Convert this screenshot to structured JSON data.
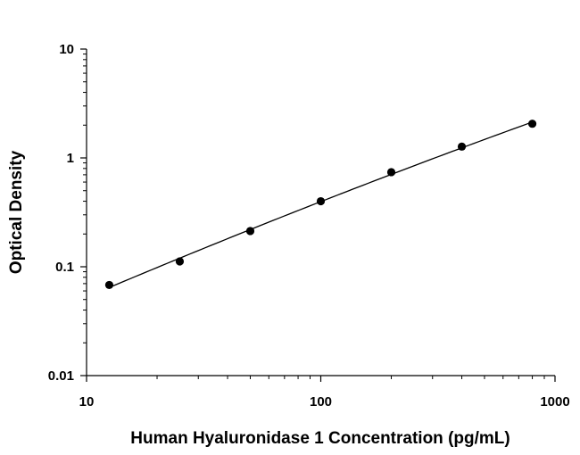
{
  "chart_data": {
    "type": "scatter",
    "title": "",
    "xlabel": "Human Hyaluronidase 1 Concentration (pg/mL)",
    "ylabel": "Optical Density",
    "xscale": "log",
    "yscale": "log",
    "xlim": [
      10,
      1000
    ],
    "ylim": [
      0.01,
      10
    ],
    "x_ticks": [
      "10",
      "100",
      "1000"
    ],
    "y_ticks": [
      "0.01",
      "0.1",
      "1",
      "10"
    ],
    "grid": false,
    "legend": "none",
    "series": [
      {
        "x": [
          12.5,
          25,
          50,
          100,
          200,
          400,
          800
        ],
        "y": [
          0.068,
          0.112,
          0.213,
          0.4,
          0.74,
          1.27,
          2.06
        ],
        "marker": "circle",
        "color": "#000000",
        "fit_line": true
      }
    ]
  }
}
